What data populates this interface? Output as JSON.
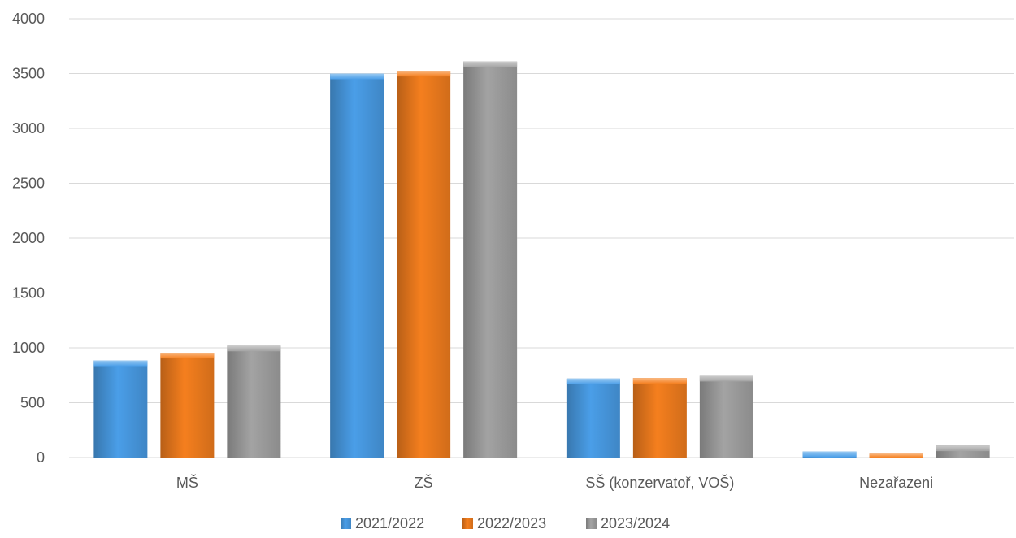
{
  "chart_data": {
    "type": "bar",
    "title": "",
    "xlabel": "",
    "ylabel": "",
    "categories": [
      "MŠ",
      "ZŠ",
      "SŠ (konzervatoř, VOŠ)",
      "Nezařazeni"
    ],
    "series": [
      {
        "name": "2021/2022",
        "color": "#4a9ee8",
        "values": [
          885,
          3500,
          720,
          55
        ]
      },
      {
        "name": "2022/2023",
        "color": "#f57f1e",
        "values": [
          955,
          3525,
          725,
          35
        ]
      },
      {
        "name": "2023/2024",
        "color": "#a3a3a3",
        "values": [
          1020,
          3610,
          745,
          110
        ]
      }
    ],
    "ylim": [
      0,
      4000
    ],
    "yticks": [
      0,
      500,
      1000,
      1500,
      2000,
      2500,
      3000,
      3500,
      4000
    ],
    "grid": true,
    "legend": "bottom-center"
  }
}
